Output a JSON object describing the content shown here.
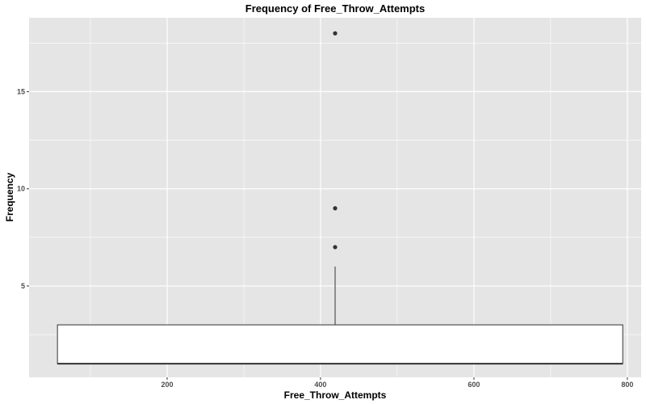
{
  "chart_data": {
    "type": "boxplot",
    "title": "Frequency of Free_Throw_Attempts",
    "xlabel": "Free_Throw_Attempts",
    "ylabel": "Frequency",
    "xlim": [
      20,
      818
    ],
    "ylim": [
      0.3,
      18.8
    ],
    "x_ticks": [
      200,
      400,
      600,
      800
    ],
    "x_tick_labels": [
      "200",
      "400",
      "600",
      "800"
    ],
    "y_ticks": [
      5,
      10,
      15
    ],
    "y_tick_labels": [
      "5",
      "10",
      "15"
    ],
    "grid": true,
    "legend": "none",
    "box": {
      "x_center": 419,
      "x_range": [
        57,
        794
      ],
      "q1": 1,
      "median": 1,
      "q3": 3,
      "whisker_low": 1,
      "whisker_high": 6,
      "outliers": [
        7,
        9,
        18
      ]
    },
    "colors": {
      "panel": "#e5e5e5",
      "grid": "#ffffff",
      "box_fill": "#ffffff",
      "line": "#333333",
      "tick_text": "#4d4d4d"
    }
  }
}
